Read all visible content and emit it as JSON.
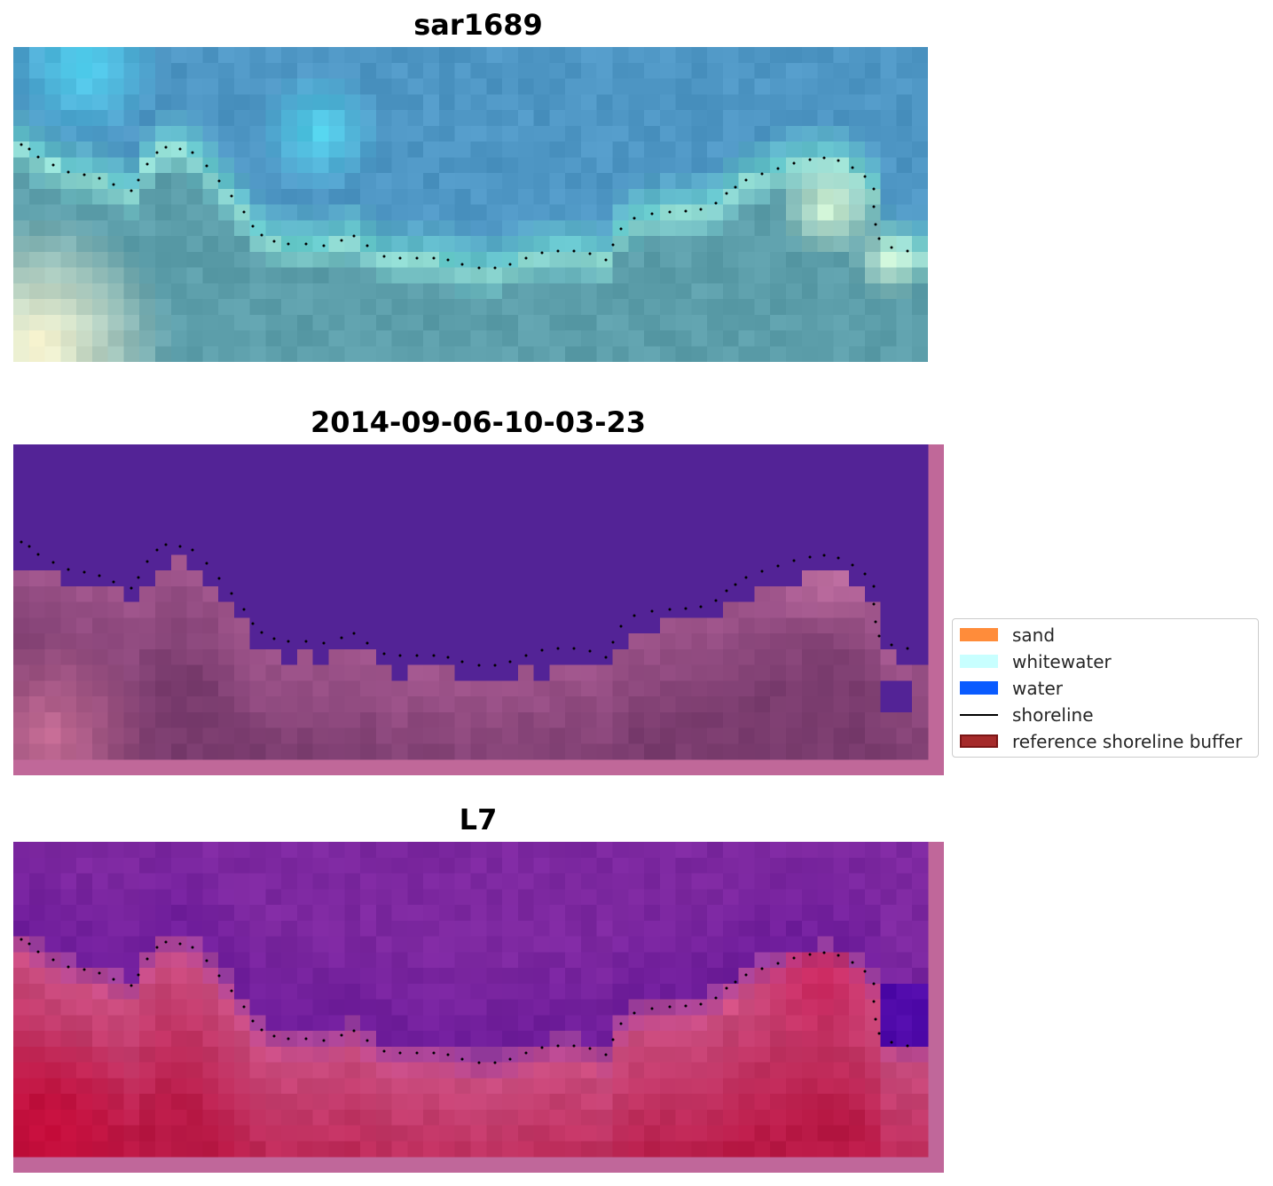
{
  "panels": [
    {
      "title": "sar1689",
      "kind": "rgb"
    },
    {
      "title": "2014-09-06-10-03-23",
      "kind": "classified"
    },
    {
      "title": "L7",
      "kind": "index"
    }
  ],
  "legend": {
    "items": [
      {
        "label": "sand",
        "type": "patch",
        "color": "#ff8c3a",
        "edge": "#ff8c3a"
      },
      {
        "label": "whitewater",
        "type": "patch",
        "color": "#c8ffff",
        "edge": "#c8ffff"
      },
      {
        "label": "water",
        "type": "patch",
        "color": "#0a5bff",
        "edge": "#0a5bff"
      },
      {
        "label": "shoreline",
        "type": "line",
        "color": "#000000"
      },
      {
        "label": "reference shoreline buffer",
        "type": "patch",
        "color": "#a52a2a",
        "edge": "#7a1515"
      }
    ]
  }
}
